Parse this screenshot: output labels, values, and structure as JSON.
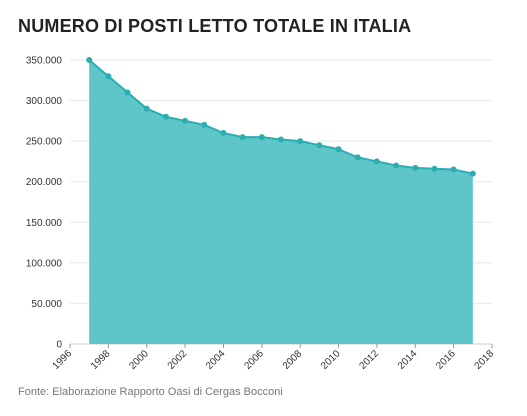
{
  "title": "NUMERO DI POSTI LETTO TOTALE IN ITALIA",
  "source": "Fonte: Elaborazione Rapporto Oasi di Cergas Bocconi",
  "chart_data": {
    "type": "area",
    "title": "NUMERO DI POSTI LETTO TOTALE IN ITALIA",
    "xlabel": "",
    "ylabel": "",
    "xlim": [
      1996,
      2018
    ],
    "ylim": [
      0,
      350000
    ],
    "x_ticks": [
      "1996",
      "1998",
      "2000",
      "2002",
      "2004",
      "2006",
      "2008",
      "2010",
      "2012",
      "2014",
      "2016",
      "2018"
    ],
    "y_ticks": [
      "0",
      "50.000",
      "100.000",
      "150.000",
      "200.000",
      "250.000",
      "300.000",
      "350.000"
    ],
    "x": [
      1997,
      1998,
      1999,
      2000,
      2001,
      2002,
      2003,
      2004,
      2005,
      2006,
      2007,
      2008,
      2009,
      2010,
      2011,
      2012,
      2013,
      2014,
      2015,
      2016,
      2017
    ],
    "values": [
      350000,
      330000,
      310000,
      290000,
      280000,
      275000,
      270000,
      260000,
      255000,
      255000,
      252000,
      250000,
      245000,
      240000,
      230000,
      225000,
      220000,
      217000,
      216000,
      215000,
      210000
    ],
    "grid": true,
    "colors": {
      "fill": "#5ec6c9",
      "line": "#2aaeb1",
      "grid": "#e8e8e8"
    }
  }
}
